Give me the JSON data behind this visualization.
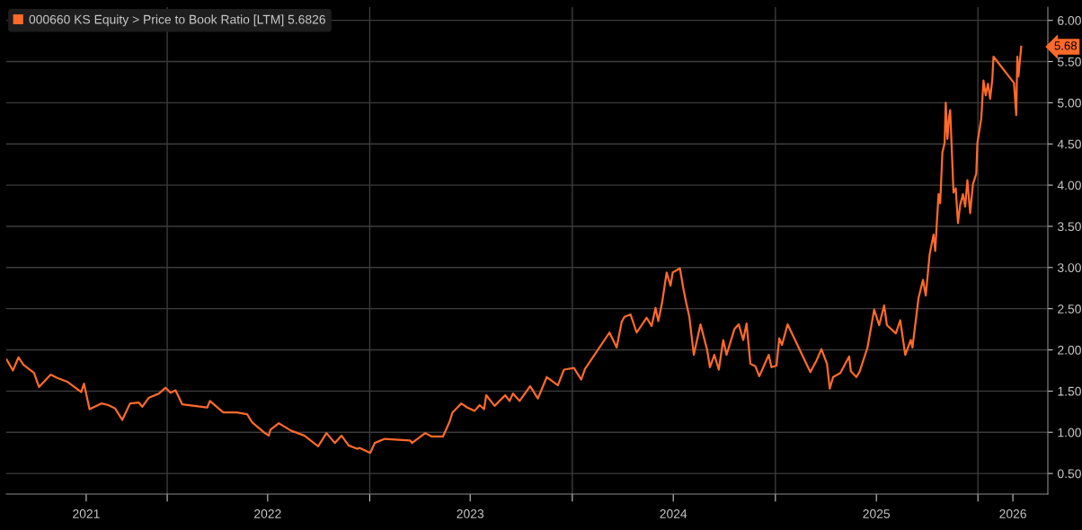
{
  "chart_data": {
    "type": "line",
    "x": [
      "2021-03-18",
      "2021-03-29",
      "2021-04-08",
      "2021-04-17",
      "2021-05-06",
      "2021-05-15",
      "2021-06-05",
      "2021-06-17",
      "2021-07-06",
      "2021-07-30",
      "2021-08-04",
      "2021-08-14",
      "2021-09-05",
      "2021-09-17",
      "2021-09-29",
      "2021-10-12",
      "2021-10-26",
      "2021-11-11",
      "2021-11-17",
      "2021-11-29",
      "2021-12-17",
      "2021-12-29",
      "2022-01-07",
      "2022-01-16",
      "2022-01-28",
      "2022-03-14",
      "2022-03-19",
      "2022-04-12",
      "2022-05-06",
      "2022-05-25",
      "2022-06-03",
      "2022-06-24",
      "2022-07-03",
      "2022-07-06",
      "2022-07-21",
      "2022-08-12",
      "2022-09-05",
      "2022-09-30",
      "2022-10-15",
      "2022-10-30",
      "2022-11-11",
      "2022-11-24",
      "2022-12-09",
      "2022-12-14",
      "2023-01-02",
      "2023-01-10",
      "2023-01-28",
      "2023-03-15",
      "2023-03-18",
      "2023-04-11",
      "2023-04-22",
      "2023-05-13",
      "2023-05-25",
      "2023-05-30",
      "2023-06-15",
      "2023-06-26",
      "2023-07-09",
      "2023-07-18",
      "2023-07-26",
      "2023-07-30",
      "2023-08-14",
      "2023-09-02",
      "2023-09-10",
      "2023-09-16",
      "2023-09-28",
      "2023-10-17",
      "2023-10-31",
      "2023-11-16",
      "2023-12-06",
      "2023-12-17",
      "2024-01-04",
      "2024-01-17",
      "2024-01-24",
      "2024-03-08",
      "2024-03-21",
      "2024-03-30",
      "2024-04-04",
      "2024-04-15",
      "2024-04-26",
      "2024-05-14",
      "2024-05-23",
      "2024-05-30",
      "2024-06-04",
      "2024-06-11",
      "2024-06-19",
      "2024-06-26",
      "2024-06-30",
      "2024-07-13",
      "2024-07-19",
      "2024-07-24",
      "2024-07-30",
      "2024-08-07",
      "2024-08-19",
      "2024-08-31",
      "2024-09-05",
      "2024-09-13",
      "2024-09-21",
      "2024-09-29",
      "2024-10-05",
      "2024-10-19",
      "2024-10-27",
      "2024-11-04",
      "2024-11-10",
      "2024-11-17",
      "2024-11-26",
      "2024-12-03",
      "2024-12-20",
      "2024-12-25",
      "2025-01-03",
      "2025-01-08",
      "2025-01-13",
      "2025-01-23",
      "2025-03-05",
      "2025-03-16",
      "2025-03-25",
      "2025-04-04",
      "2025-04-09",
      "2025-04-15",
      "2025-04-28",
      "2025-05-14",
      "2025-05-17",
      "2025-05-27",
      "2025-06-02",
      "2025-06-16",
      "2025-06-28",
      "2025-07-07",
      "2025-07-16",
      "2025-07-21",
      "2025-08-06",
      "2025-08-14",
      "2025-08-23",
      "2025-09-02",
      "2025-09-05",
      "2025-09-16",
      "2025-09-24",
      "2025-09-29",
      "2025-10-06",
      "2025-10-13",
      "2025-10-16",
      "2025-10-22",
      "2025-10-25",
      "2025-10-29",
      "2025-11-02",
      "2025-11-04",
      "2025-11-07",
      "2025-11-10",
      "2025-11-12",
      "2025-11-18",
      "2025-11-22",
      "2025-11-26",
      "2025-11-30",
      "2025-12-05",
      "2025-12-09",
      "2025-12-13",
      "2025-12-18",
      "2025-12-23",
      "2025-12-29",
      "2025-12-31",
      "2026-01-07",
      "2026-01-11",
      "2026-01-15",
      "2026-01-19",
      "2026-01-23",
      "2026-01-27",
      "2026-01-29",
      "2026-03-07",
      "2026-03-11",
      "2026-03-13",
      "2026-03-15",
      "2026-03-20"
    ],
    "series": [
      {
        "name": "000660 KS Equity > Price to Book Ratio [LTM] 5.6826",
        "color": "#ff6a2b",
        "values": [
          1.88,
          1.75,
          1.91,
          1.82,
          1.72,
          1.55,
          1.7,
          1.66,
          1.61,
          1.49,
          1.59,
          1.28,
          1.35,
          1.33,
          1.29,
          1.15,
          1.35,
          1.36,
          1.31,
          1.42,
          1.47,
          1.54,
          1.48,
          1.51,
          1.34,
          1.3,
          1.38,
          1.24,
          1.24,
          1.22,
          1.12,
          1.0,
          0.96,
          1.03,
          1.11,
          1.02,
          0.96,
          0.83,
          0.99,
          0.87,
          0.96,
          0.84,
          0.8,
          0.81,
          0.75,
          0.87,
          0.92,
          0.9,
          0.87,
          0.99,
          0.95,
          0.95,
          1.13,
          1.24,
          1.35,
          1.3,
          1.26,
          1.33,
          1.28,
          1.45,
          1.32,
          1.45,
          1.38,
          1.47,
          1.38,
          1.56,
          1.41,
          1.67,
          1.57,
          1.76,
          1.78,
          1.64,
          1.77,
          2.21,
          2.03,
          2.34,
          2.4,
          2.43,
          2.21,
          2.39,
          2.29,
          2.51,
          2.35,
          2.58,
          2.94,
          2.78,
          2.94,
          2.99,
          2.75,
          2.58,
          2.4,
          1.94,
          2.31,
          2.0,
          1.79,
          1.94,
          1.76,
          2.12,
          1.94,
          2.25,
          2.31,
          2.12,
          2.32,
          1.83,
          1.8,
          1.68,
          1.94,
          1.79,
          1.81,
          2.14,
          2.06,
          2.31,
          1.73,
          1.87,
          2.01,
          1.83,
          1.53,
          1.67,
          1.72,
          1.92,
          1.74,
          1.67,
          1.74,
          2.03,
          2.49,
          2.3,
          2.54,
          2.3,
          2.2,
          2.36,
          1.94,
          2.12,
          2.03,
          2.63,
          2.85,
          2.66,
          3.16,
          3.4,
          3.2,
          3.89,
          3.78,
          4.4,
          4.51,
          5.0,
          4.56,
          4.83,
          4.91,
          3.91,
          3.96,
          3.54,
          3.76,
          3.89,
          3.74,
          4.06,
          3.66,
          4.01,
          4.14,
          4.51,
          4.81,
          5.27,
          5.09,
          5.23,
          5.05,
          5.29,
          5.56,
          5.24,
          4.85,
          5.56,
          5.32,
          5.68
        ]
      }
    ],
    "xlim": [
      "2021-03-17",
      "2026-05-07"
    ],
    "xticks": [
      {
        "value": "2021-08-08",
        "label": "2021"
      },
      {
        "value": "2022-01-01",
        "label": null
      },
      {
        "value": "2022-07-01",
        "label": "2022"
      },
      {
        "value": "2023-01-01",
        "label": null
      },
      {
        "value": "2023-07-01",
        "label": "2023"
      },
      {
        "value": "2024-01-01",
        "label": null
      },
      {
        "value": "2024-07-01",
        "label": "2024"
      },
      {
        "value": "2025-01-01",
        "label": null
      },
      {
        "value": "2025-07-02",
        "label": "2025"
      },
      {
        "value": "2026-01-01",
        "label": null
      },
      {
        "value": "2026-03-05",
        "label": "2026"
      }
    ],
    "ylim": [
      0.25,
      6.16
    ],
    "yticks": [
      {
        "value": 0.5,
        "label": "0.50"
      },
      {
        "value": 1,
        "label": "1.00"
      },
      {
        "value": 1.5,
        "label": "1.50"
      },
      {
        "value": 2,
        "label": "2.00"
      },
      {
        "value": 2.5,
        "label": "2.50"
      },
      {
        "value": 3,
        "label": "3.00"
      },
      {
        "value": 3.5,
        "label": "3.50"
      },
      {
        "value": 4,
        "label": "4.00"
      },
      {
        "value": 4.5,
        "label": "4.50"
      },
      {
        "value": 5,
        "label": "5.00"
      },
      {
        "value": 5.5,
        "label": "5.50"
      },
      {
        "value": 6,
        "label": "6.00"
      }
    ],
    "annotations": [
      "5.68"
    ],
    "grid": true,
    "legend": "top left"
  }
}
